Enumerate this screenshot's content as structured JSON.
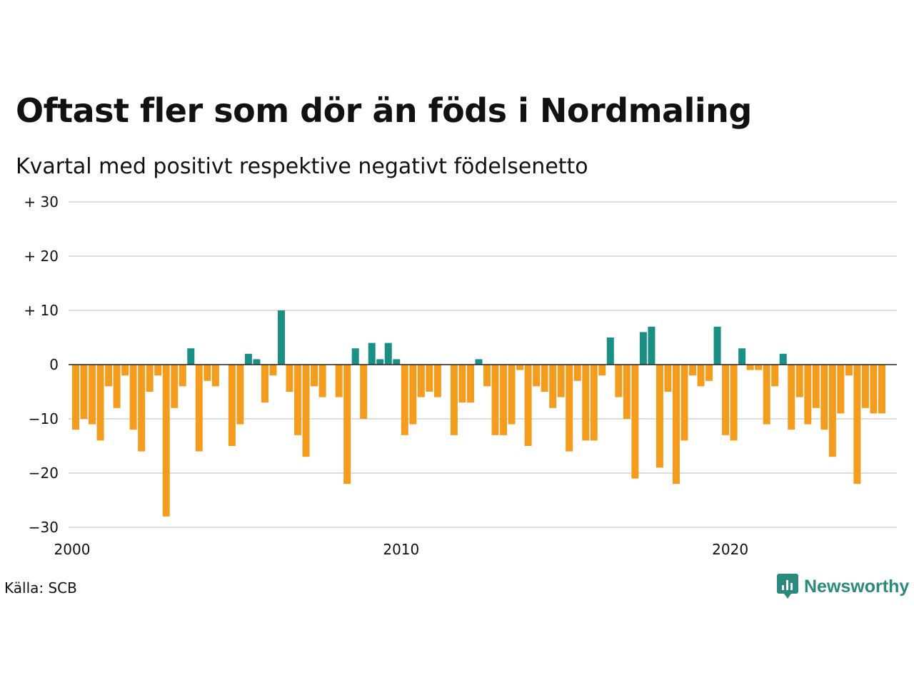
{
  "title": "Oftast fler som dör än föds i Nordmaling",
  "subtitle": "Kvartal med positivt respektive negativt födelsenetto",
  "source": "Källa: SCB",
  "logo_text": "Newsworthy",
  "colors": {
    "positive": "#1a9085",
    "negative": "#f39c1e",
    "grid": "#dddddd",
    "zero": "#222222"
  },
  "chart_data": {
    "type": "bar",
    "start_year": 2000,
    "values": [
      -12,
      -10,
      -11,
      -14,
      -4,
      -8,
      -2,
      -12,
      -16,
      -5,
      -2,
      -28,
      -8,
      -4,
      3,
      -16,
      -3,
      -4,
      0,
      -15,
      -11,
      2,
      1,
      -7,
      -2,
      10,
      -5,
      -13,
      -17,
      -4,
      -6,
      0,
      -6,
      -22,
      3,
      -10,
      4,
      1,
      4,
      1,
      -13,
      -11,
      -6,
      -5,
      -6,
      0,
      -13,
      -7,
      -7,
      1,
      -4,
      -13,
      -13,
      -11,
      -1,
      -15,
      -4,
      -5,
      -8,
      -6,
      -16,
      -3,
      -14,
      -14,
      -2,
      5,
      -6,
      -10,
      -21,
      6,
      7,
      -19,
      -5,
      -22,
      -14,
      -2,
      -4,
      -3,
      7,
      -13,
      -14,
      3,
      -1,
      -1,
      -11,
      -4,
      2,
      -12,
      -6,
      -11,
      -8,
      -12,
      -17,
      -9,
      -2,
      -22,
      -8,
      -9,
      -9
    ],
    "ylim": [
      -30,
      30
    ],
    "yticks": [
      "−30",
      "−20",
      "−10",
      "0",
      "+ 10",
      "+ 20",
      "+ 30"
    ],
    "ytick_values": [
      -30,
      -20,
      -10,
      0,
      10,
      20,
      30
    ],
    "xticks": [
      "2000",
      "2010",
      "2020"
    ],
    "xtick_values": [
      2000,
      2010,
      2020
    ],
    "grid": true
  }
}
